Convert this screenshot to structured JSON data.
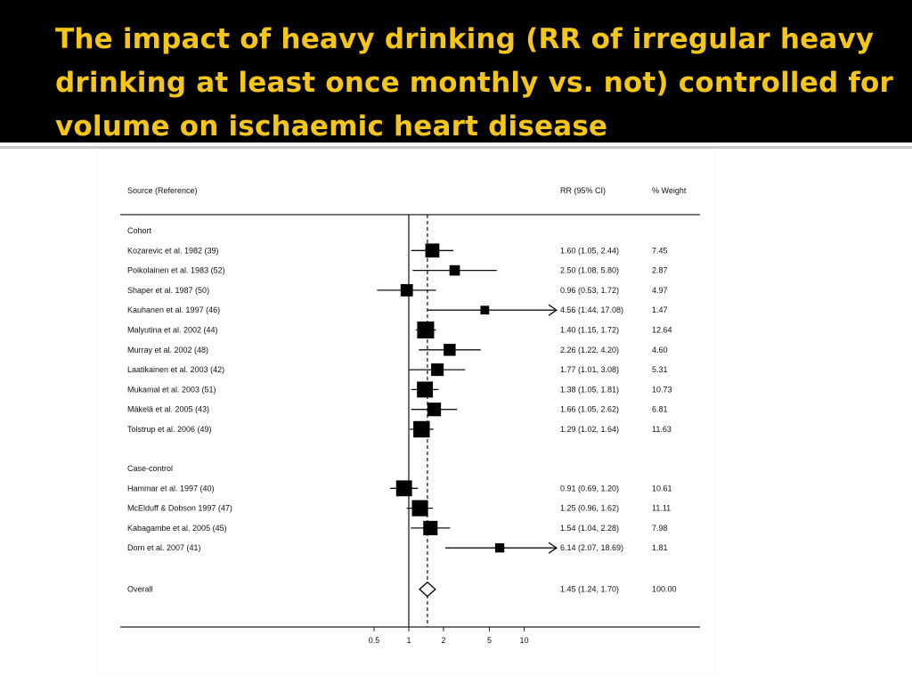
{
  "slide": {
    "title": "The impact of heavy drinking (RR of irregular heavy drinking at least once monthly vs. not) controlled for volume on ischaemic heart disease",
    "accent_color": "#f5c518",
    "band_color": "#000000"
  },
  "chart_data": {
    "type": "forest",
    "scale": "log",
    "headers": {
      "source": "Source (Reference)",
      "rr": "RR (95% CI)",
      "weight": "% Weight"
    },
    "x_ticks": [
      0.5,
      1,
      2,
      5,
      10
    ],
    "x_tick_labels": [
      "0.5",
      "1",
      "2",
      "5",
      "10"
    ],
    "reference_line": 1,
    "pooled_line": 1.45,
    "groups": [
      {
        "label": "Cohort",
        "studies": [
          {
            "name": "Kozarevic et al. 1982 (39)",
            "rr": 1.6,
            "lo": 1.05,
            "hi": 2.44,
            "rr_label": "1.60 (1.05, 2.44)",
            "weight": 7.45,
            "weight_label": "7.45"
          },
          {
            "name": "Poikolainen et al. 1983 (52)",
            "rr": 2.5,
            "lo": 1.08,
            "hi": 5.8,
            "rr_label": "2.50 (1.08, 5.80)",
            "weight": 2.87,
            "weight_label": "2.87"
          },
          {
            "name": "Shaper et al. 1987 (50)",
            "rr": 0.96,
            "lo": 0.53,
            "hi": 1.72,
            "rr_label": "0.96 (0.53, 1.72)",
            "weight": 4.97,
            "weight_label": "4.97"
          },
          {
            "name": "Kauhanen et al. 1997 (46)",
            "rr": 4.56,
            "lo": 1.44,
            "hi": 17.08,
            "rr_label": "4.56 (1.44, 17.08)",
            "weight": 1.47,
            "weight_label": "1.47"
          },
          {
            "name": "Malyutina et al. 2002 (44)",
            "rr": 1.4,
            "lo": 1.15,
            "hi": 1.72,
            "rr_label": "1.40 (1.15, 1.72)",
            "weight": 12.64,
            "weight_label": "12.64"
          },
          {
            "name": "Murray et al. 2002 (48)",
            "rr": 2.26,
            "lo": 1.22,
            "hi": 4.2,
            "rr_label": "2.26 (1.22, 4.20)",
            "weight": 4.6,
            "weight_label": "4.60"
          },
          {
            "name": "Laatikainen et al. 2003 (42)",
            "rr": 1.77,
            "lo": 1.01,
            "hi": 3.08,
            "rr_label": "1.77 (1.01, 3.08)",
            "weight": 5.31,
            "weight_label": "5.31"
          },
          {
            "name": "Mukamal et al. 2003 (51)",
            "rr": 1.38,
            "lo": 1.05,
            "hi": 1.81,
            "rr_label": "1.38 (1.05, 1.81)",
            "weight": 10.73,
            "weight_label": "10.73"
          },
          {
            "name": "Mäkelä et al. 2005 (43)",
            "rr": 1.66,
            "lo": 1.05,
            "hi": 2.62,
            "rr_label": "1.66 (1.05, 2.62)",
            "weight": 6.81,
            "weight_label": "6.81"
          },
          {
            "name": "Tolstrup et al. 2006 (49)",
            "rr": 1.29,
            "lo": 1.02,
            "hi": 1.64,
            "rr_label": "1.29 (1.02, 1.64)",
            "weight": 11.63,
            "weight_label": "11.63"
          }
        ]
      },
      {
        "label": "Case-control",
        "studies": [
          {
            "name": "Hammar et al. 1997 (40)",
            "rr": 0.91,
            "lo": 0.69,
            "hi": 1.2,
            "rr_label": "0.91 (0.69, 1.20)",
            "weight": 10.61,
            "weight_label": "10.61"
          },
          {
            "name": "McElduff & Dobson 1997 (47)",
            "rr": 1.25,
            "lo": 0.96,
            "hi": 1.62,
            "rr_label": "1.25 (0.96, 1.62)",
            "weight": 11.11,
            "weight_label": "11.11"
          },
          {
            "name": "Kabagambe et al. 2005 (45)",
            "rr": 1.54,
            "lo": 1.04,
            "hi": 2.28,
            "rr_label": "1.54 (1.04, 2.28)",
            "weight": 7.98,
            "weight_label": "7.98"
          },
          {
            "name": "Dorn et al. 2007 (41)",
            "rr": 6.14,
            "lo": 2.07,
            "hi": 18.69,
            "rr_label": "6.14 (2.07, 18.69)",
            "weight": 1.81,
            "weight_label": "1.81"
          }
        ]
      }
    ],
    "overall": {
      "name": "Overall",
      "rr": 1.45,
      "lo": 1.24,
      "hi": 1.7,
      "rr_label": "1.45 (1.24, 1.70)",
      "weight": 100.0,
      "weight_label": "100.00"
    }
  }
}
